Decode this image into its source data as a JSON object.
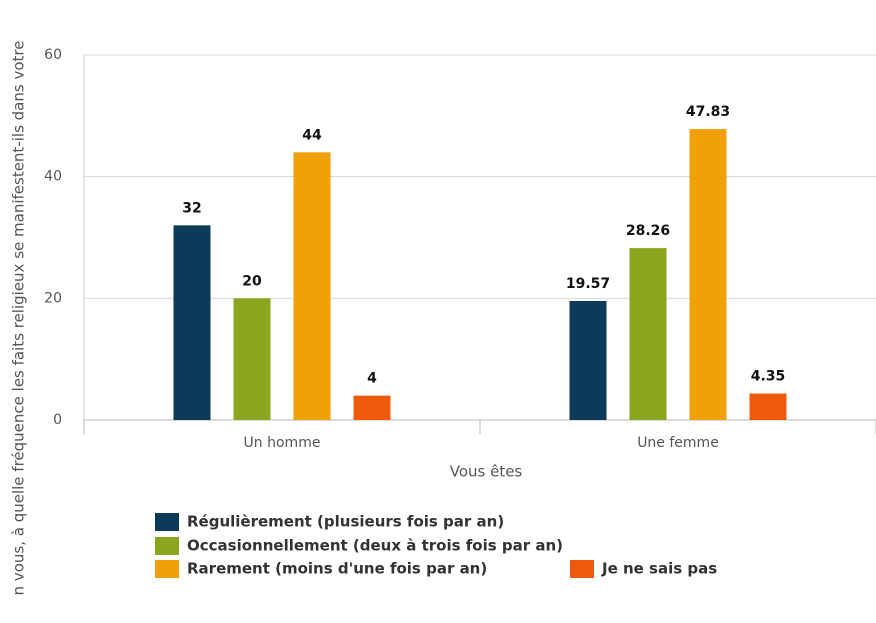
{
  "chart_data": {
    "type": "bar",
    "x_label": "Vous êtes",
    "y_label": "n vous, à quelle fréquence les faits religieux se manifestent-ils dans votre",
    "categories": [
      "Un homme",
      "Une femme"
    ],
    "series": [
      {
        "name": "Régulièrement (plusieurs fois par an)",
        "color": "#0e3a5a",
        "values": [
          32,
          19.57
        ]
      },
      {
        "name": "Occasionnellement (deux à trois fois par an)",
        "color": "#8aa61f",
        "values": [
          20,
          28.26
        ]
      },
      {
        "name": "Rarement (moins d'une fois par an)",
        "color": "#f0a10a",
        "values": [
          44,
          47.83
        ]
      },
      {
        "name": "Je ne sais pas",
        "color": "#ef5b0c",
        "values": [
          4,
          4.35
        ]
      }
    ],
    "ylim": [
      0,
      60
    ],
    "yticks": [
      0,
      20,
      40,
      60
    ],
    "grid": true,
    "legend": "bottom"
  }
}
